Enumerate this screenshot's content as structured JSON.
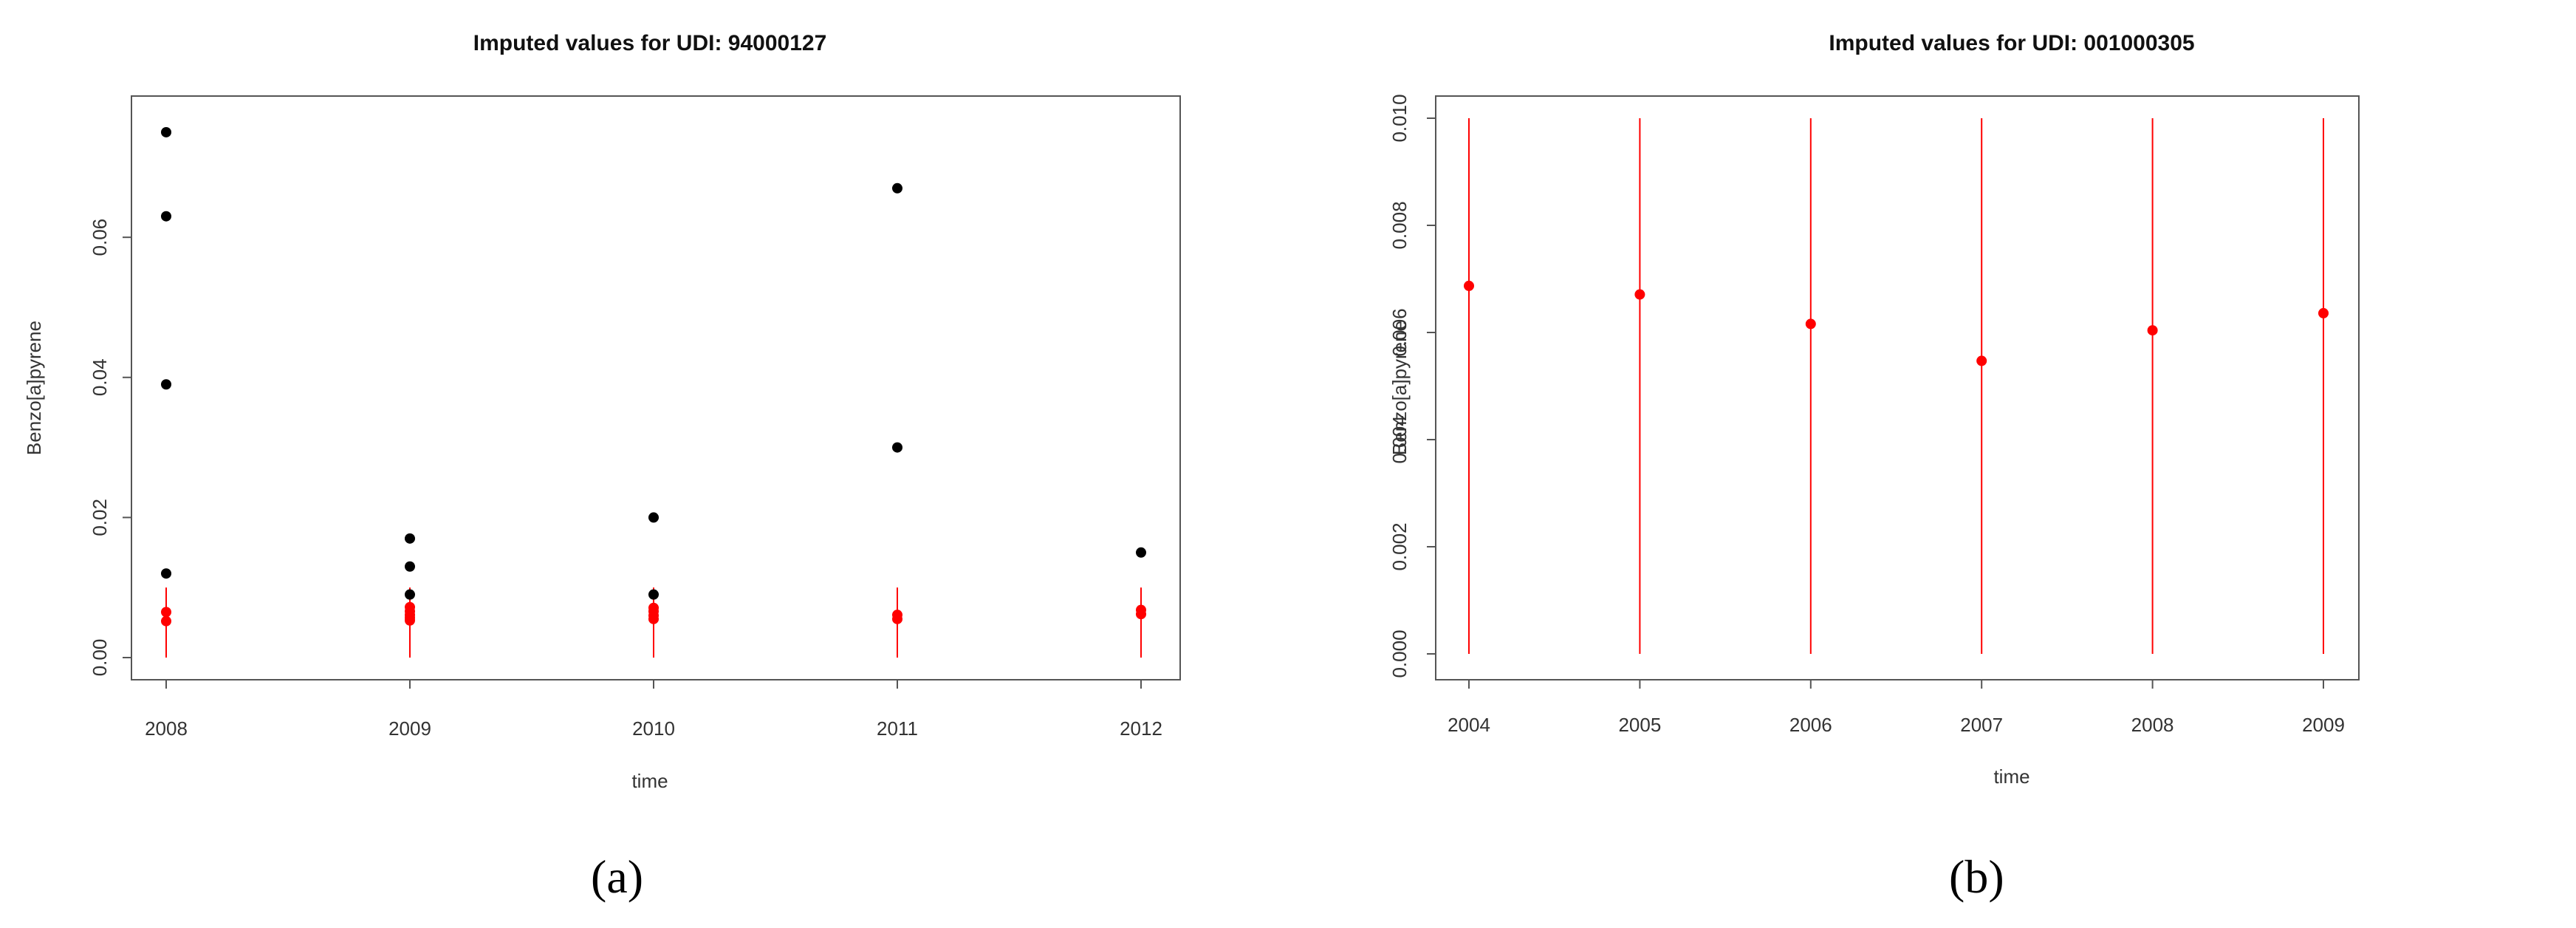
{
  "chart_data": [
    {
      "type": "scatter",
      "title": "Imputed values for UDI: 94000127",
      "xlabel": "time",
      "ylabel": "Benzo[a]pyrene",
      "xlim": [
        2008,
        2012
      ],
      "ylim": [
        0,
        0.077
      ],
      "x_ticks": [
        2008,
        2009,
        2010,
        2011,
        2012
      ],
      "x_tick_labels": [
        "2008",
        "2009",
        "2010",
        "2011",
        "2012"
      ],
      "y_ticks": [
        0.0,
        0.02,
        0.04,
        0.06
      ],
      "y_tick_labels": [
        "0.00",
        "0.02",
        "0.04",
        "0.06"
      ],
      "grid": false,
      "series": [
        {
          "role": "observed",
          "color": "#000000",
          "x": [
            2008,
            2008,
            2008,
            2008,
            2009,
            2009,
            2009,
            2010,
            2010,
            2011,
            2011,
            2012
          ],
          "y": [
            0.075,
            0.063,
            0.039,
            0.012,
            0.017,
            0.013,
            0.009,
            0.02,
            0.009,
            0.067,
            0.03,
            0.015
          ]
        },
        {
          "role": "imputed",
          "color": "#ff0000",
          "x": [
            2008,
            2008,
            2009,
            2009,
            2009,
            2009,
            2009,
            2010,
            2010,
            2010,
            2010,
            2011,
            2011,
            2012,
            2012
          ],
          "y": [
            0.0065,
            0.0052,
            0.0072,
            0.0066,
            0.0061,
            0.0057,
            0.0053,
            0.0071,
            0.0066,
            0.006,
            0.0055,
            0.0061,
            0.0055,
            0.0068,
            0.0062
          ],
          "ranges": [
            {
              "x": 2008,
              "low": 0.0,
              "high": 0.01
            },
            {
              "x": 2009,
              "low": 0.0,
              "high": 0.01
            },
            {
              "x": 2010,
              "low": 0.0,
              "high": 0.01
            },
            {
              "x": 2011,
              "low": 0.0,
              "high": 0.01
            },
            {
              "x": 2012,
              "low": 0.0,
              "high": 0.01
            }
          ]
        }
      ],
      "caption": "(a)"
    },
    {
      "type": "scatter",
      "title": "Imputed values for UDI: 001000305",
      "xlabel": "time",
      "ylabel": "Benzo[a]pyrene",
      "xlim": [
        2004,
        2009
      ],
      "ylim": [
        0,
        0.01
      ],
      "x_ticks": [
        2004,
        2005,
        2006,
        2007,
        2008,
        2009
      ],
      "x_tick_labels": [
        "2004",
        "2005",
        "2006",
        "2007",
        "2008",
        "2009"
      ],
      "y_ticks": [
        0.0,
        0.002,
        0.004,
        0.006,
        0.008,
        0.01
      ],
      "y_tick_labels": [
        "0.000",
        "0.002",
        "0.004",
        "0.006",
        "0.008",
        "0.010"
      ],
      "grid": false,
      "series": [
        {
          "role": "imputed",
          "color": "#ff0000",
          "x": [
            2004,
            2005,
            2006,
            2007,
            2008,
            2009
          ],
          "y": [
            0.00687,
            0.00671,
            0.00616,
            0.00547,
            0.00604,
            0.00636
          ],
          "ranges": [
            {
              "x": 2004,
              "low": 0.0,
              "high": 0.01
            },
            {
              "x": 2005,
              "low": 0.0,
              "high": 0.01
            },
            {
              "x": 2006,
              "low": 0.0,
              "high": 0.01
            },
            {
              "x": 2007,
              "low": 0.0,
              "high": 0.01
            },
            {
              "x": 2008,
              "low": 0.0,
              "high": 0.01
            },
            {
              "x": 2009,
              "low": 0.0,
              "high": 0.01
            }
          ]
        }
      ],
      "caption": "(b)"
    }
  ]
}
